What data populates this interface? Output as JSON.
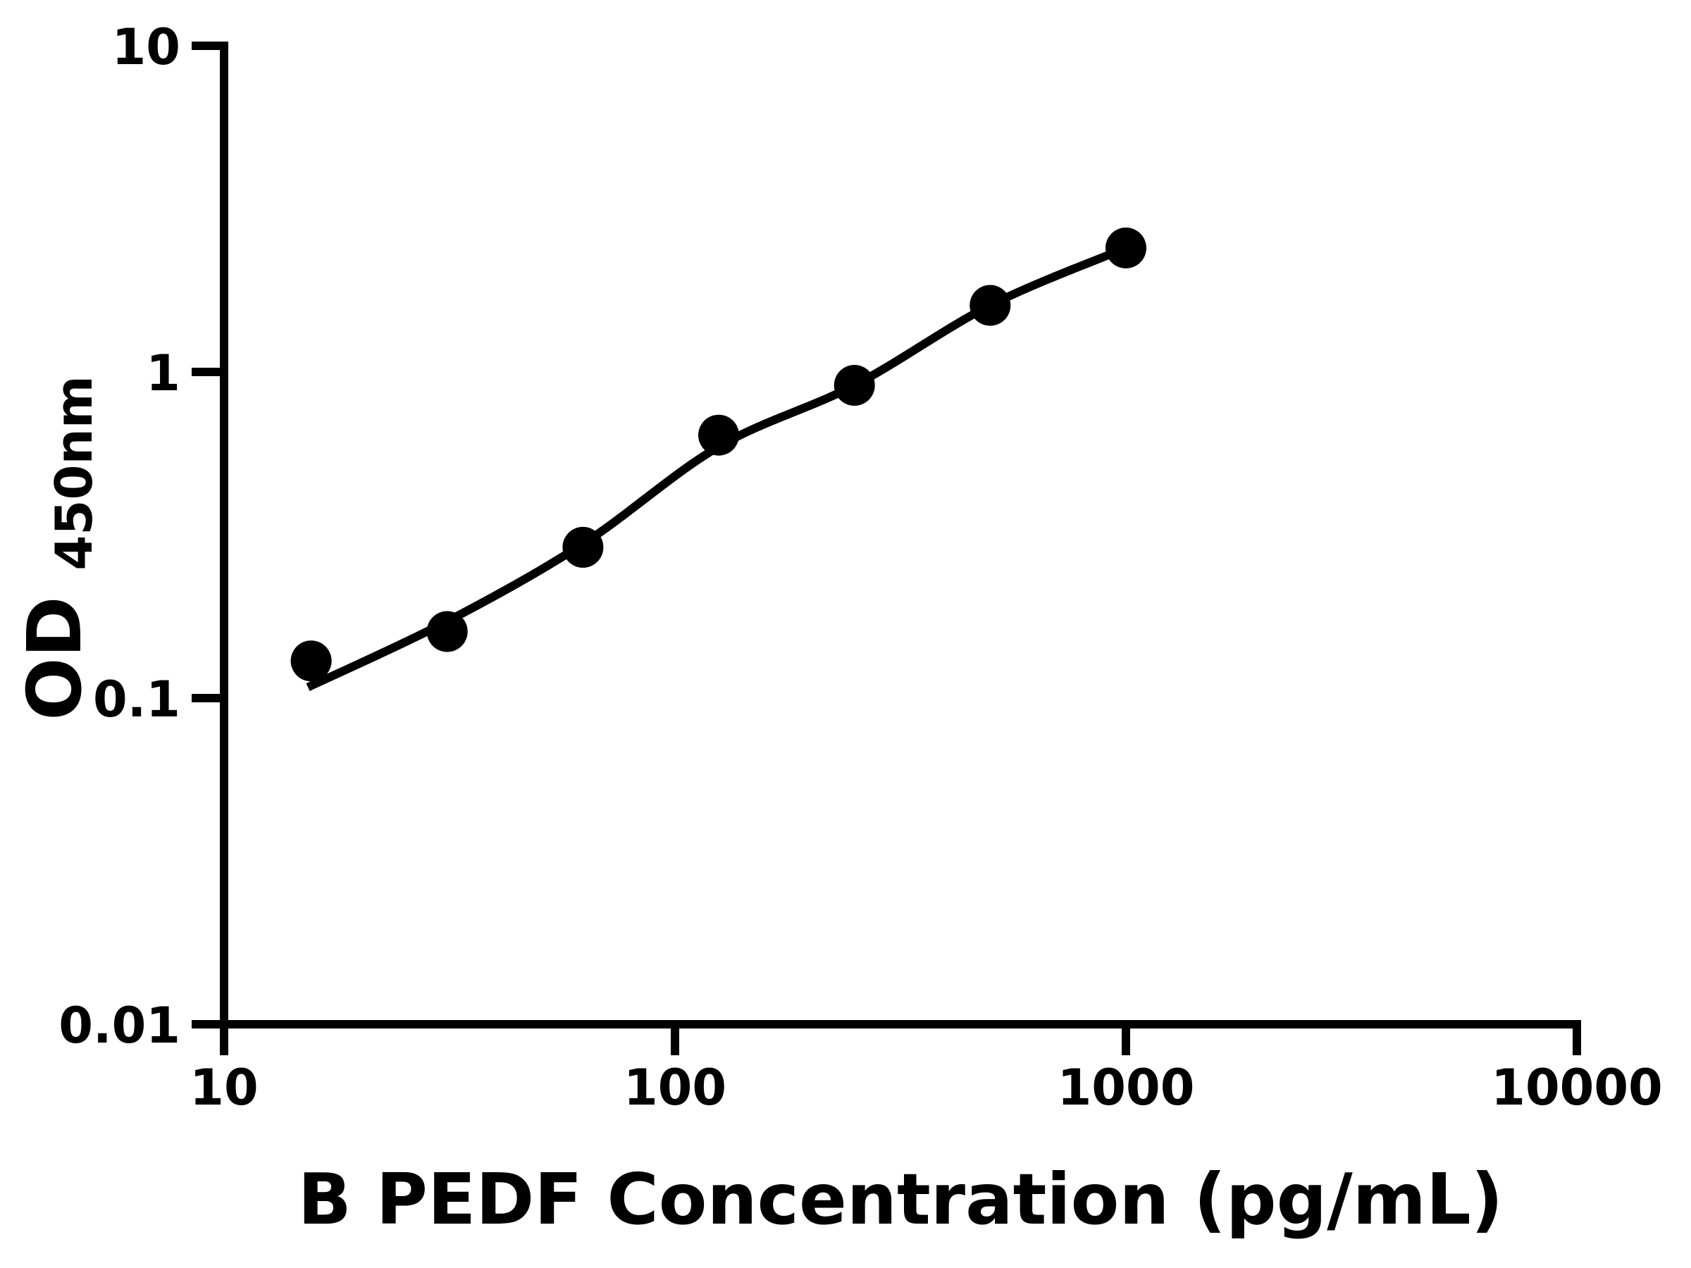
{
  "figure": {
    "background_color": "#ffffff",
    "ink_color": "#000000"
  },
  "chart_data": {
    "type": "scatter",
    "title": "",
    "xlabel": "B PEDF Concentration (pg/mL)",
    "ylabel_main": "OD",
    "ylabel_subscript": "450nm",
    "x_scale": "log",
    "y_scale": "log",
    "xlim": [
      10,
      10000
    ],
    "ylim": [
      0.01,
      10
    ],
    "x_tick_values": [
      10,
      100,
      1000,
      10000
    ],
    "x_tick_labels": [
      "10",
      "100",
      "1000",
      "10000"
    ],
    "y_tick_values": [
      10,
      1,
      0.1,
      0.01
    ],
    "y_tick_labels": [
      "10",
      "1",
      "0.1",
      "0.01"
    ],
    "grid": false,
    "legend": false,
    "marker_color": "#000000",
    "line_color": "#000000",
    "series": [
      {
        "name": "standard_points",
        "type": "scatter",
        "marker": "circle",
        "x": [
          15.6,
          31.25,
          62.5,
          125,
          250,
          500,
          1000
        ],
        "y": [
          0.13,
          0.16,
          0.29,
          0.64,
          0.91,
          1.6,
          2.4
        ]
      },
      {
        "name": "fitted_curve",
        "type": "line",
        "x": [
          15.35,
          31.25,
          62.5,
          125,
          250,
          500,
          1000
        ],
        "y": [
          0.108,
          0.172,
          0.297,
          0.59,
          0.91,
          1.6,
          2.4
        ]
      }
    ]
  }
}
